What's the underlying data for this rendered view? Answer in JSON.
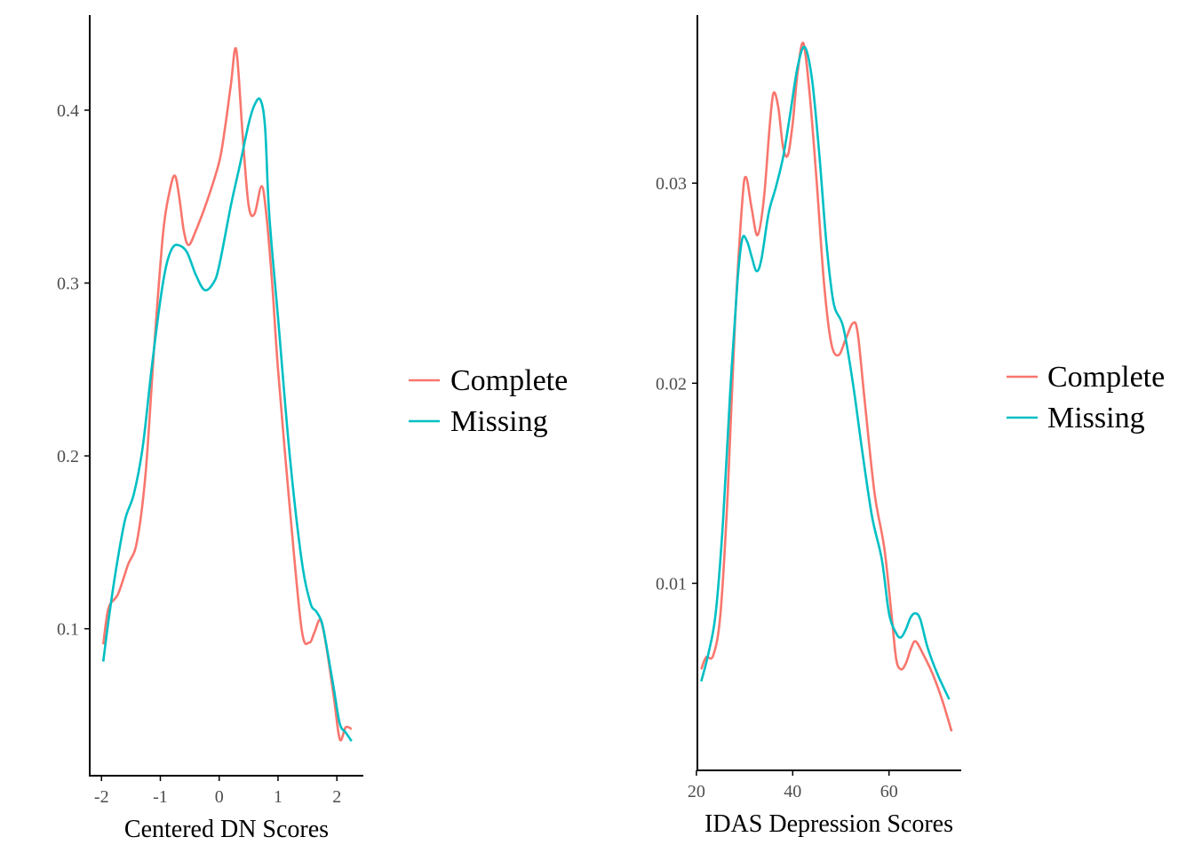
{
  "colors": {
    "complete": "#F8766D",
    "missing": "#00BFC4",
    "axis": "#000000",
    "tick_text": "#4d4d4d"
  },
  "chart_data": [
    {
      "type": "line",
      "title": "",
      "xlabel": "Centered DN Scores",
      "ylabel": "",
      "xlim": [
        -2.2,
        2.45
      ],
      "ylim": [
        0.015,
        0.455
      ],
      "xticks": [
        -2,
        -1,
        0,
        1,
        2
      ],
      "xtick_labels": [
        "-2",
        "-1",
        "0",
        "1",
        "2"
      ],
      "yticks": [
        0.1,
        0.2,
        0.3,
        0.4
      ],
      "ytick_labels": [
        "0.1",
        "0.2",
        "0.3",
        "0.4"
      ],
      "grid": false,
      "legend_position": "right",
      "series": [
        {
          "name": "Complete",
          "color": "#F8766D",
          "x": [
            -1.97,
            -1.88,
            -1.72,
            -1.55,
            -1.4,
            -1.25,
            -1.1,
            -0.95,
            -0.83,
            -0.75,
            -0.68,
            -0.6,
            -0.52,
            -0.4,
            -0.2,
            0.0,
            0.1,
            0.2,
            0.29,
            0.4,
            0.5,
            0.6,
            0.72,
            0.8,
            0.9,
            1.0,
            1.2,
            1.4,
            1.53,
            1.62,
            1.72,
            1.82,
            1.95,
            2.05,
            2.15,
            2.25
          ],
          "y": [
            0.091,
            0.112,
            0.12,
            0.137,
            0.15,
            0.19,
            0.265,
            0.33,
            0.355,
            0.362,
            0.35,
            0.33,
            0.322,
            0.33,
            0.348,
            0.37,
            0.39,
            0.415,
            0.435,
            0.385,
            0.345,
            0.34,
            0.356,
            0.34,
            0.3,
            0.25,
            0.17,
            0.1,
            0.092,
            0.098,
            0.105,
            0.09,
            0.06,
            0.036,
            0.043,
            0.042
          ]
        },
        {
          "name": "Missing",
          "color": "#00BFC4",
          "x": [
            -1.97,
            -1.88,
            -1.75,
            -1.6,
            -1.45,
            -1.3,
            -1.15,
            -1.0,
            -0.9,
            -0.8,
            -0.7,
            -0.55,
            -0.4,
            -0.25,
            -0.1,
            0.0,
            0.2,
            0.35,
            0.5,
            0.6,
            0.7,
            0.78,
            0.85,
            1.0,
            1.2,
            1.4,
            1.55,
            1.65,
            1.75,
            1.85,
            1.95,
            2.05,
            2.15,
            2.25
          ],
          "y": [
            0.081,
            0.105,
            0.135,
            0.163,
            0.178,
            0.205,
            0.25,
            0.29,
            0.31,
            0.32,
            0.322,
            0.318,
            0.305,
            0.296,
            0.3,
            0.31,
            0.345,
            0.368,
            0.392,
            0.403,
            0.406,
            0.39,
            0.34,
            0.28,
            0.2,
            0.14,
            0.115,
            0.11,
            0.103,
            0.085,
            0.065,
            0.045,
            0.04,
            0.035
          ]
        }
      ]
    },
    {
      "type": "line",
      "title": "",
      "xlabel": "IDAS Depression Scores",
      "ylabel": "",
      "xlim": [
        20.2,
        75.0
      ],
      "ylim": [
        0.00065,
        0.0384
      ],
      "xticks": [
        20,
        40,
        60
      ],
      "xtick_labels": [
        "20",
        "40",
        "60"
      ],
      "yticks": [
        0.01,
        0.02,
        0.03
      ],
      "ytick_labels": [
        "0.01",
        "0.02",
        "0.03"
      ],
      "grid": false,
      "legend_position": "right",
      "series": [
        {
          "name": "Complete",
          "color": "#F8766D",
          "x": [
            21.0,
            22.0,
            23.5,
            25.0,
            26.5,
            28.0,
            29.5,
            30.3,
            31.5,
            32.7,
            34.0,
            35.2,
            36.0,
            37.0,
            38.0,
            39.0,
            40.0,
            41.0,
            42.2,
            43.5,
            45.0,
            46.5,
            48.0,
            49.5,
            51.0,
            52.5,
            53.5,
            55.0,
            57.0,
            59.0,
            60.5,
            61.5,
            62.5,
            63.5,
            64.5,
            65.5,
            67.0,
            69.0,
            71.0,
            73.0
          ],
          "y": [
            0.0057,
            0.0063,
            0.0064,
            0.0085,
            0.0145,
            0.023,
            0.029,
            0.0303,
            0.0287,
            0.0274,
            0.0292,
            0.0328,
            0.0345,
            0.0338,
            0.0318,
            0.0314,
            0.033,
            0.0355,
            0.037,
            0.0345,
            0.03,
            0.025,
            0.022,
            0.0214,
            0.0222,
            0.023,
            0.0225,
            0.019,
            0.0145,
            0.0118,
            0.0085,
            0.0062,
            0.0057,
            0.006,
            0.0067,
            0.0071,
            0.0065,
            0.0055,
            0.0042,
            0.0026
          ]
        },
        {
          "name": "Missing",
          "color": "#00BFC4",
          "x": [
            21.0,
            22.5,
            24.0,
            25.5,
            27.0,
            28.5,
            29.5,
            30.5,
            31.5,
            32.5,
            33.5,
            35.0,
            36.5,
            38.0,
            39.5,
            41.0,
            42.5,
            44.0,
            45.5,
            47.0,
            48.5,
            50.5,
            52.5,
            54.5,
            56.5,
            58.5,
            60.0,
            61.5,
            62.5,
            63.5,
            64.5,
            65.5,
            66.5,
            68.0,
            70.0,
            72.5
          ],
          "y": [
            0.0051,
            0.0065,
            0.0085,
            0.013,
            0.0195,
            0.025,
            0.0272,
            0.0271,
            0.0263,
            0.0256,
            0.0262,
            0.0285,
            0.0298,
            0.0313,
            0.0335,
            0.0358,
            0.0368,
            0.0352,
            0.0315,
            0.027,
            0.024,
            0.0228,
            0.02,
            0.0165,
            0.0133,
            0.0112,
            0.0085,
            0.0075,
            0.0073,
            0.0077,
            0.0083,
            0.0085,
            0.0082,
            0.0068,
            0.0055,
            0.0042
          ]
        }
      ]
    }
  ]
}
